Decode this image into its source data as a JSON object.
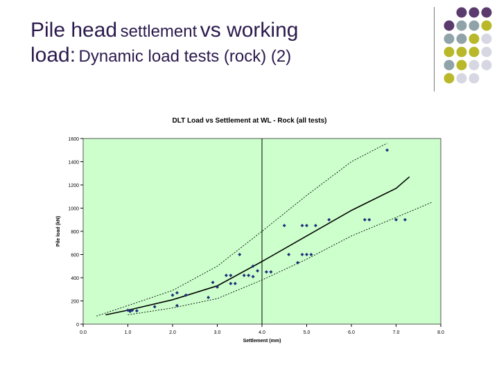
{
  "slide": {
    "title_line1_a": "Pile head",
    "title_line1_b": "settlement",
    "title_line1_c": "vs working",
    "title_line2_a": "load:",
    "title_line2_b": "Dynamic load tests (rock) (2)"
  },
  "decoration": {
    "dot_colors": [
      "#5b3a6e",
      "#8fa3a8",
      "#b8b82a",
      "#d7d7e3"
    ]
  },
  "chart_data": {
    "type": "scatter",
    "title": "DLT Load vs Settlement at WL - Rock (all tests)",
    "xlabel": "Settlement (mm)",
    "ylabel": "Pile load (kN)",
    "xlim": [
      0,
      8
    ],
    "ylim": [
      0,
      1600
    ],
    "x_ticks": [
      "0.0",
      "1.0",
      "2.0",
      "3.0",
      "4.0",
      "5.0",
      "6.0",
      "7.0",
      "8.0"
    ],
    "y_ticks": [
      "0",
      "200",
      "400",
      "600",
      "800",
      "1000",
      "1200",
      "1400",
      "1600"
    ],
    "grid": false,
    "background": "#ccffcc",
    "point_color": "#1f2f7a",
    "points": [
      [
        1.0,
        120
      ],
      [
        1.05,
        110
      ],
      [
        1.1,
        120
      ],
      [
        1.2,
        115
      ],
      [
        1.6,
        150
      ],
      [
        2.0,
        250
      ],
      [
        2.1,
        160
      ],
      [
        2.1,
        270
      ],
      [
        2.3,
        250
      ],
      [
        2.8,
        230
      ],
      [
        2.9,
        360
      ],
      [
        3.0,
        320
      ],
      [
        3.2,
        420
      ],
      [
        3.3,
        350
      ],
      [
        3.3,
        420
      ],
      [
        3.4,
        350
      ],
      [
        3.5,
        600
      ],
      [
        3.6,
        420
      ],
      [
        3.7,
        420
      ],
      [
        3.8,
        410
      ],
      [
        3.8,
        500
      ],
      [
        3.9,
        460
      ],
      [
        4.1,
        450
      ],
      [
        4.2,
        450
      ],
      [
        4.5,
        850
      ],
      [
        4.6,
        600
      ],
      [
        4.8,
        530
      ],
      [
        4.9,
        600
      ],
      [
        4.9,
        850
      ],
      [
        5.0,
        600
      ],
      [
        5.0,
        850
      ],
      [
        5.1,
        600
      ],
      [
        5.2,
        850
      ],
      [
        5.5,
        900
      ],
      [
        6.3,
        900
      ],
      [
        6.4,
        900
      ],
      [
        6.8,
        1500
      ],
      [
        7.0,
        900
      ],
      [
        7.2,
        900
      ]
    ],
    "trend_mean": [
      [
        0.5,
        80
      ],
      [
        1.0,
        120
      ],
      [
        2.0,
        210
      ],
      [
        3.0,
        330
      ],
      [
        4.0,
        540
      ],
      [
        5.0,
        760
      ],
      [
        6.0,
        980
      ],
      [
        7.0,
        1170
      ],
      [
        7.3,
        1270
      ]
    ],
    "upper_bound": [
      [
        0.3,
        70
      ],
      [
        1.0,
        160
      ],
      [
        2.0,
        290
      ],
      [
        3.0,
        500
      ],
      [
        4.0,
        800
      ],
      [
        5.0,
        1110
      ],
      [
        6.0,
        1400
      ],
      [
        6.8,
        1560
      ]
    ],
    "lower_bound": [
      [
        1.0,
        80
      ],
      [
        2.0,
        140
      ],
      [
        3.0,
        220
      ],
      [
        4.0,
        380
      ],
      [
        5.0,
        560
      ],
      [
        6.0,
        760
      ],
      [
        7.0,
        920
      ],
      [
        7.8,
        1050
      ]
    ],
    "reference_line_x": 4.0
  }
}
